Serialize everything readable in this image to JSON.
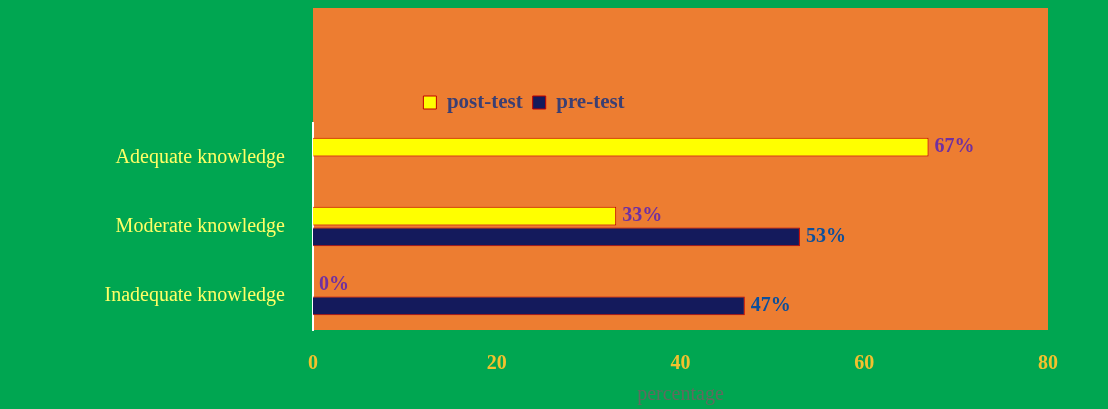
{
  "chart_data": {
    "type": "bar",
    "orientation": "horizontal",
    "categories": [
      "Adequate knowledge",
      "Moderate knowledge",
      "Inadequate knowledge"
    ],
    "xlabel": "percentage",
    "xlim": [
      0,
      80
    ],
    "xticks": [
      0,
      20,
      40,
      60,
      80
    ],
    "legend": "top",
    "grid": false,
    "series": [
      {
        "name": "post-test",
        "color": "#ffff00",
        "values": [
          67,
          33,
          0
        ],
        "value_labels": [
          "67%",
          "33%",
          "0%"
        ]
      },
      {
        "name": "pre-test",
        "color": "#141a5c",
        "values": [
          null,
          53,
          47
        ],
        "value_labels": [
          null,
          "53%",
          "47%"
        ]
      }
    ]
  }
}
